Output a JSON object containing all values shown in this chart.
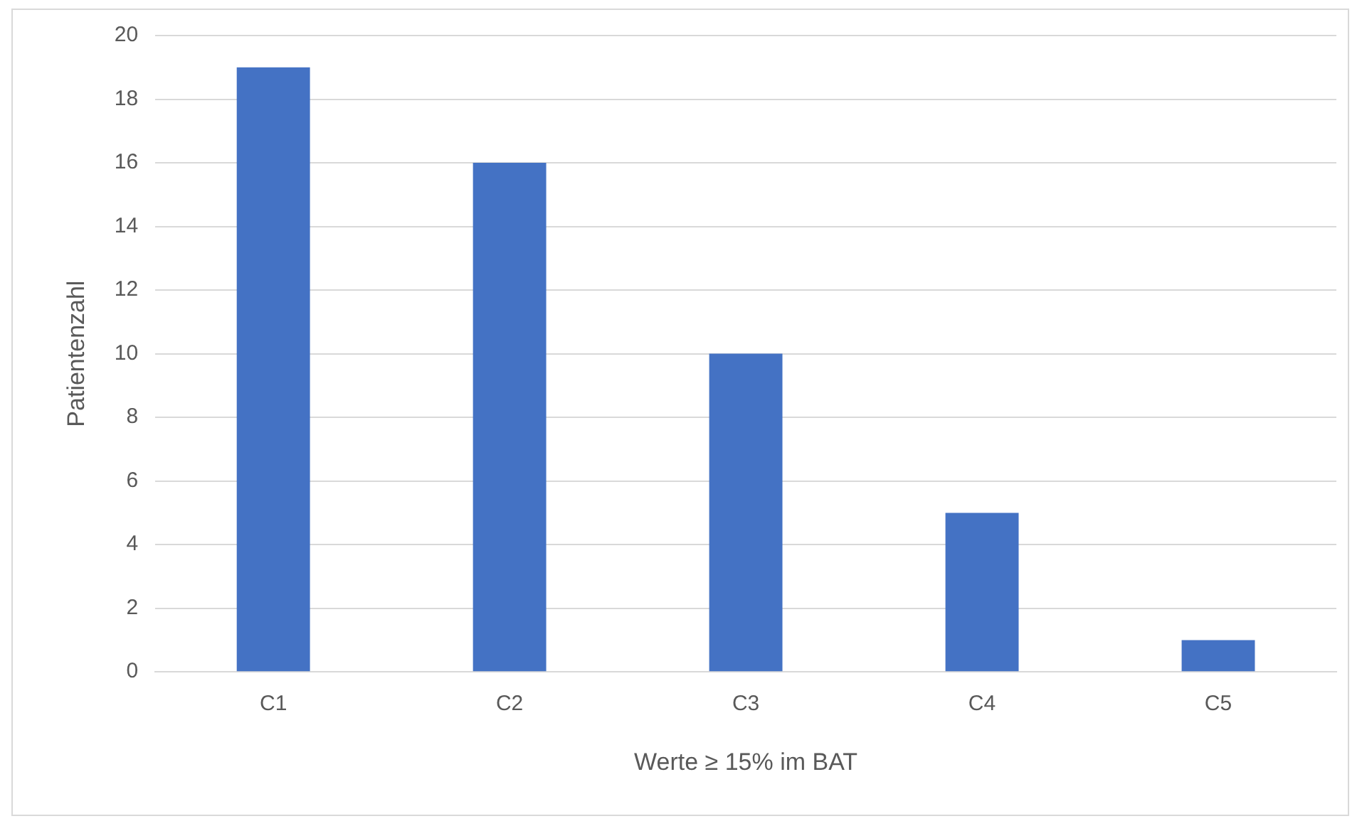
{
  "chart_data": {
    "type": "bar",
    "xlabel": "Werte ≥ 15% im BAT",
    "ylabel": "Patientenzahl",
    "categories": [
      "C1",
      "C2",
      "C3",
      "C4",
      "C5"
    ],
    "values": [
      19,
      16,
      10,
      5,
      1
    ],
    "color": "#4472c4",
    "ylim": [
      0,
      20
    ],
    "yticks": [
      0,
      2,
      4,
      6,
      8,
      10,
      12,
      14,
      16,
      18,
      20
    ],
    "grid": "y"
  }
}
